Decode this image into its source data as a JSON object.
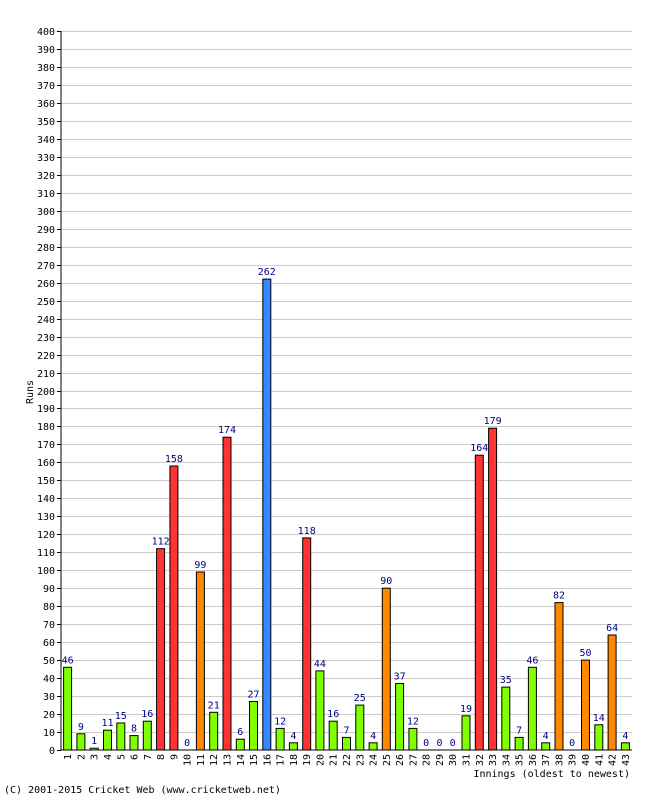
{
  "chart_data": {
    "type": "bar",
    "title": "",
    "ylabel": "Runs",
    "xlabel": "Innings (oldest to newest)",
    "ylim": [
      0,
      400
    ],
    "ytick_step": 10,
    "grid": true,
    "categories": [
      "1",
      "2",
      "3",
      "4",
      "5",
      "6",
      "7",
      "8",
      "9",
      "10",
      "11",
      "12",
      "13",
      "14",
      "15",
      "16",
      "17",
      "18",
      "19",
      "20",
      "21",
      "22",
      "23",
      "24",
      "25",
      "26",
      "27",
      "28",
      "29",
      "30",
      "31",
      "32",
      "33",
      "34",
      "35",
      "36",
      "37",
      "38",
      "39",
      "40",
      "41",
      "42",
      "43"
    ],
    "values": [
      46,
      9,
      1,
      11,
      15,
      8,
      16,
      112,
      158,
      0,
      99,
      21,
      174,
      6,
      27,
      262,
      12,
      4,
      118,
      44,
      16,
      7,
      25,
      4,
      90,
      37,
      12,
      0,
      0,
      0,
      19,
      164,
      179,
      35,
      7,
      46,
      4,
      82,
      0,
      50,
      14,
      64,
      4
    ],
    "bar_groups": [
      "g",
      "g",
      "g",
      "g",
      "g",
      "g",
      "g",
      "r",
      "r",
      "g",
      "o",
      "g",
      "r",
      "g",
      "g",
      "b",
      "g",
      "g",
      "r",
      "g",
      "g",
      "g",
      "g",
      "g",
      "o",
      "g",
      "g",
      "g",
      "g",
      "g",
      "g",
      "r",
      "r",
      "g",
      "g",
      "g",
      "g",
      "o",
      "g",
      "o",
      "g",
      "o",
      "g"
    ],
    "colors": {
      "g": "#80ff00",
      "o": "#ff8800",
      "r": "#ff3333",
      "b": "#3388ff",
      "grid": "#cccccc",
      "label": "#000080"
    }
  },
  "footer": {
    "copyright": "(C) 2001-2015 Cricket Web (www.cricketweb.net)"
  }
}
